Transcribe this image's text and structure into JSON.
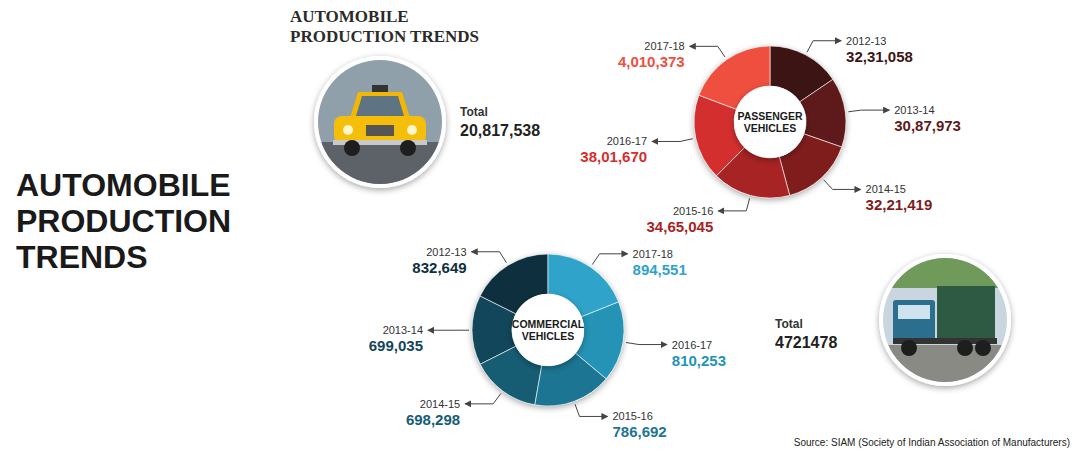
{
  "title": "AUTOMOBILE PRODUCTION TRENDS",
  "heading": "AUTOMOBILE PRODUCTION TRENDS",
  "source": "Source: SIAM (Society of Indian Association of Manufacturers)",
  "chart_data": [
    {
      "type": "donut",
      "title": "PASSENGER VEHICLES",
      "categories": [
        "2012-13",
        "2013-14",
        "2014-15",
        "2015-16",
        "2016-17",
        "2017-18"
      ],
      "values": [
        3231058,
        3087973,
        3221419,
        3465045,
        3801670,
        4010373
      ],
      "value_labels": [
        "32,31,058",
        "30,87,973",
        "32,21,419",
        "34,65,045",
        "38,01,670",
        "4,010,373"
      ],
      "colors": [
        "#3d1414",
        "#5e1a1a",
        "#7f1d1d",
        "#a82323",
        "#d32f2f",
        "#ef4f3f"
      ],
      "data_labels": true,
      "total": {
        "label": "Total",
        "value": 20817538,
        "value_label": "20,817,538"
      }
    },
    {
      "type": "donut",
      "title": "COMMERCIAL VEHICLES",
      "categories": [
        "2012-13",
        "2013-14",
        "2014-15",
        "2015-16",
        "2016-17",
        "2017-18"
      ],
      "values": [
        832649,
        699035,
        698298,
        786692,
        810253,
        894551
      ],
      "value_labels": [
        "832,649",
        "699,035",
        "698,298",
        "786,692",
        "810,253",
        "894,551"
      ],
      "colors": [
        "#0e2f3d",
        "#12465a",
        "#165d74",
        "#1b7593",
        "#2593b5",
        "#2fa3c9"
      ],
      "data_labels": true,
      "total": {
        "label": "Total",
        "value": 4721478
      }
    }
  ]
}
